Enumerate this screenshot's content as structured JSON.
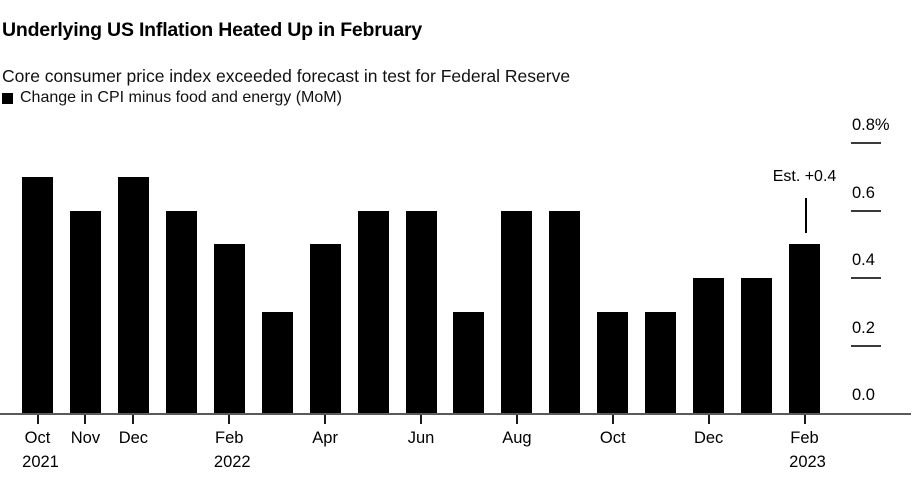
{
  "header": {
    "title": "Underlying US Inflation Heated Up in February",
    "subtitle": "Core consumer price index exceeded forecast in test for Federal Reserve",
    "legend": {
      "swatch_color": "#000000",
      "label": "Change in CPI minus food and energy (MoM)"
    }
  },
  "chart_data": {
    "type": "bar",
    "title": "Underlying US Inflation Heated Up in February",
    "subtitle": "Core consumer price index exceeded forecast in test for Federal Reserve",
    "series_name": "Change in CPI minus food and energy (MoM)",
    "unit": "%",
    "bar_color": "#000000",
    "background_color": "#ffffff",
    "categories": [
      "Oct 2021",
      "Nov 2021",
      "Dec 2021",
      "Jan 2022",
      "Feb 2022",
      "Mar 2022",
      "Apr 2022",
      "May 2022",
      "Jun 2022",
      "Jul 2022",
      "Aug 2022",
      "Sep 2022",
      "Oct 2022",
      "Nov 2022",
      "Dec 2022",
      "Jan 2023",
      "Feb 2023"
    ],
    "values": [
      0.7,
      0.6,
      0.7,
      0.6,
      0.5,
      0.3,
      0.5,
      0.6,
      0.6,
      0.3,
      0.6,
      0.6,
      0.3,
      0.3,
      0.4,
      0.4,
      0.5
    ],
    "ylim": [
      0,
      0.8
    ],
    "y_ticks": [
      {
        "label": "0.8%",
        "value": 0.8
      },
      {
        "label": "0.6",
        "value": 0.6
      },
      {
        "label": "0.4",
        "value": 0.4
      },
      {
        "label": "0.2",
        "value": 0.2
      },
      {
        "label": "0.0",
        "value": 0.0
      }
    ],
    "x_ticks": [
      {
        "index": 0,
        "month": "Oct",
        "year": "2021"
      },
      {
        "index": 1,
        "month": "Nov",
        "year": ""
      },
      {
        "index": 2,
        "month": "Dec",
        "year": ""
      },
      {
        "index": 4,
        "month": "Feb",
        "year": "2022"
      },
      {
        "index": 6,
        "month": "Apr",
        "year": ""
      },
      {
        "index": 8,
        "month": "Jun",
        "year": ""
      },
      {
        "index": 10,
        "month": "Aug",
        "year": ""
      },
      {
        "index": 12,
        "month": "Oct",
        "year": ""
      },
      {
        "index": 14,
        "month": "Dec",
        "year": ""
      },
      {
        "index": 16,
        "month": "Feb",
        "year": "2023"
      }
    ],
    "annotation": {
      "text": "Est. +0.4",
      "target_index": 16
    },
    "legend_position": "top-left",
    "y_axis_side": "right",
    "grid": "right-tick-dashes-only"
  }
}
